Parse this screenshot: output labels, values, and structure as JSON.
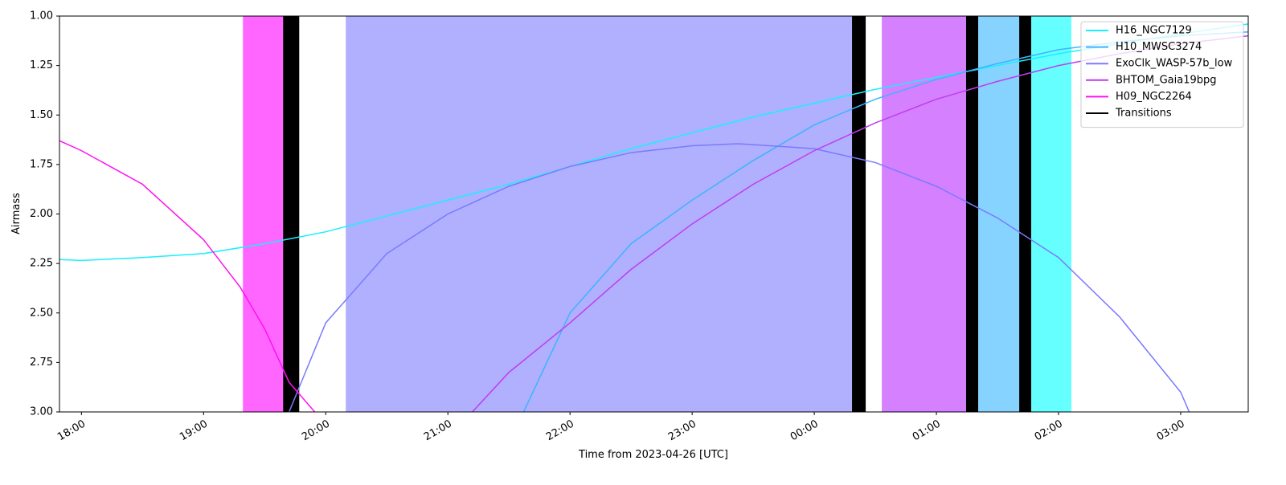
{
  "chart_data": {
    "type": "line",
    "xlabel": "Time from 2023-04-26 [UTC]",
    "ylabel": "Airmass",
    "xlim": [
      17.82,
      27.553
    ],
    "ylim": [
      1.0,
      3.0
    ],
    "y_inverted": true,
    "legend": "upper right",
    "xticks": [
      {
        "value": 18,
        "label": "18:00"
      },
      {
        "value": 19,
        "label": "19:00"
      },
      {
        "value": 20,
        "label": "20:00"
      },
      {
        "value": 21,
        "label": "21:00"
      },
      {
        "value": 22,
        "label": "22:00"
      },
      {
        "value": 23,
        "label": "23:00"
      },
      {
        "value": 24,
        "label": "00:00"
      },
      {
        "value": 25,
        "label": "01:00"
      },
      {
        "value": 26,
        "label": "02:00"
      },
      {
        "value": 27,
        "label": "03:00"
      }
    ],
    "yticks": [
      {
        "value": 1.0,
        "label": "1.00"
      },
      {
        "value": 1.25,
        "label": "1.25"
      },
      {
        "value": 1.5,
        "label": "1.50"
      },
      {
        "value": 1.75,
        "label": "1.75"
      },
      {
        "value": 2.0,
        "label": "2.00"
      },
      {
        "value": 2.25,
        "label": "2.25"
      },
      {
        "value": 2.5,
        "label": "2.50"
      },
      {
        "value": 2.75,
        "label": "2.75"
      },
      {
        "value": 3.0,
        "label": "3.00"
      }
    ],
    "blocks": [
      {
        "x0": 19.322,
        "x1": 19.651,
        "color": "#ff66ff"
      },
      {
        "x0": 20.164,
        "x1": 24.309,
        "color": "#b0b0ff"
      },
      {
        "x0": 24.553,
        "x1": 25.243,
        "color": "#d580ff"
      },
      {
        "x0": 25.342,
        "x1": 25.678,
        "color": "#87d3ff"
      },
      {
        "x0": 25.776,
        "x1": 26.105,
        "color": "#66ffff"
      }
    ],
    "transitions": {
      "name": "Transitions",
      "color": "#000000",
      "spans": [
        [
          19.651,
          19.783
        ],
        [
          24.309,
          24.421
        ],
        [
          25.243,
          25.342
        ],
        [
          25.678,
          25.776
        ]
      ]
    },
    "series": [
      {
        "name": "H16_NGC7129",
        "color": "#18f0ff",
        "x": [
          17.82,
          18.0,
          18.5,
          19.0,
          19.5,
          20.0,
          20.5,
          21.0,
          21.5,
          22.0,
          22.5,
          23.0,
          23.5,
          24.0,
          24.5,
          25.0,
          25.5,
          26.0,
          26.5,
          27.0,
          27.553
        ],
        "values": [
          2.23,
          2.235,
          2.22,
          2.2,
          2.15,
          2.09,
          2.01,
          1.93,
          1.85,
          1.76,
          1.67,
          1.59,
          1.51,
          1.44,
          1.37,
          1.31,
          1.25,
          1.19,
          1.14,
          1.09,
          1.04
        ]
      },
      {
        "name": "H10_MWSC3274",
        "color": "#3cb4ff",
        "x": [
          21.62,
          22.0,
          22.5,
          23.0,
          23.5,
          24.0,
          24.5,
          25.0,
          25.5,
          26.0,
          26.5,
          27.0,
          27.553
        ],
        "values": [
          3.0,
          2.5,
          2.15,
          1.93,
          1.73,
          1.55,
          1.42,
          1.32,
          1.24,
          1.17,
          1.13,
          1.1,
          1.08
        ]
      },
      {
        "name": "ExoClk_WASP-57b_low",
        "color": "#7a7aff",
        "x": [
          19.7,
          20.0,
          20.5,
          21.0,
          21.5,
          22.0,
          22.5,
          23.0,
          23.38,
          24.0,
          24.5,
          25.0,
          25.5,
          26.0,
          26.5,
          27.0,
          27.07
        ],
        "values": [
          3.0,
          2.55,
          2.2,
          2.0,
          1.86,
          1.76,
          1.69,
          1.655,
          1.645,
          1.67,
          1.74,
          1.86,
          2.02,
          2.22,
          2.52,
          2.9,
          3.0
        ]
      },
      {
        "name": "BHTOM_Gaia19bpg",
        "color": "#c03cf0",
        "x": [
          21.2,
          21.5,
          22.0,
          22.5,
          23.0,
          23.5,
          24.0,
          24.5,
          25.0,
          25.5,
          26.0,
          26.5,
          27.0,
          27.553
        ],
        "values": [
          3.0,
          2.8,
          2.55,
          2.28,
          2.05,
          1.85,
          1.68,
          1.54,
          1.42,
          1.33,
          1.25,
          1.19,
          1.14,
          1.1
        ]
      },
      {
        "name": "H09_NGC2264",
        "color": "#ff10f0",
        "x": [
          17.82,
          18.0,
          18.5,
          19.0,
          19.3,
          19.5,
          19.7,
          19.91
        ],
        "values": [
          1.63,
          1.68,
          1.85,
          2.13,
          2.37,
          2.58,
          2.85,
          3.0
        ]
      }
    ]
  }
}
